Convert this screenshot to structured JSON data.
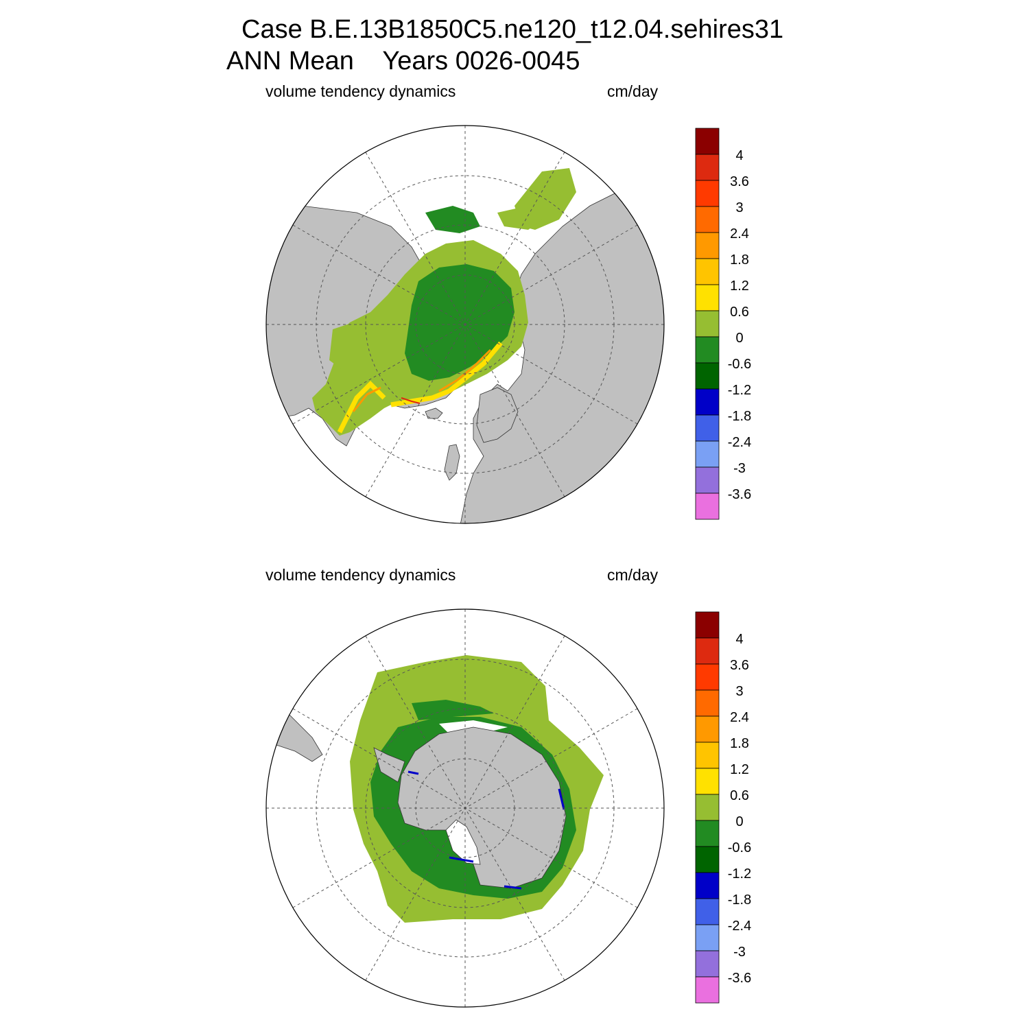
{
  "header": {
    "case_line": "Case B.E.13B1850C5.ne120_t12.04.sehires31",
    "period_line": "ANN Mean    Years 0026-0045"
  },
  "colors": {
    "land": "#c0c0c0",
    "ocean": "#ffffff",
    "grid_line": "#555555",
    "scale": [
      "#ea70df",
      "#9370dc",
      "#7aa0f4",
      "#4060e8",
      "#0000c8",
      "#006400",
      "#228b22",
      "#96be32",
      "#ffe100",
      "#ffc400",
      "#ff9900",
      "#ff6a00",
      "#ff3a00",
      "#dd2a10",
      "#8b0000"
    ]
  },
  "panels": [
    {
      "id": "north",
      "hemisphere": "Northern",
      "variable_label": "volume tendency dynamics",
      "units_label": "cm/day"
    },
    {
      "id": "south",
      "hemisphere": "Southern",
      "variable_label": "volume tendency dynamics",
      "units_label": "cm/day"
    }
  ],
  "colorbar": {
    "levels": [
      "-3.6",
      "-3",
      "-2.4",
      "-1.8",
      "-1.2",
      "-0.6",
      "0",
      "0.6",
      "1.2",
      "1.8",
      "2.4",
      "3",
      "3.6",
      "4"
    ]
  }
}
